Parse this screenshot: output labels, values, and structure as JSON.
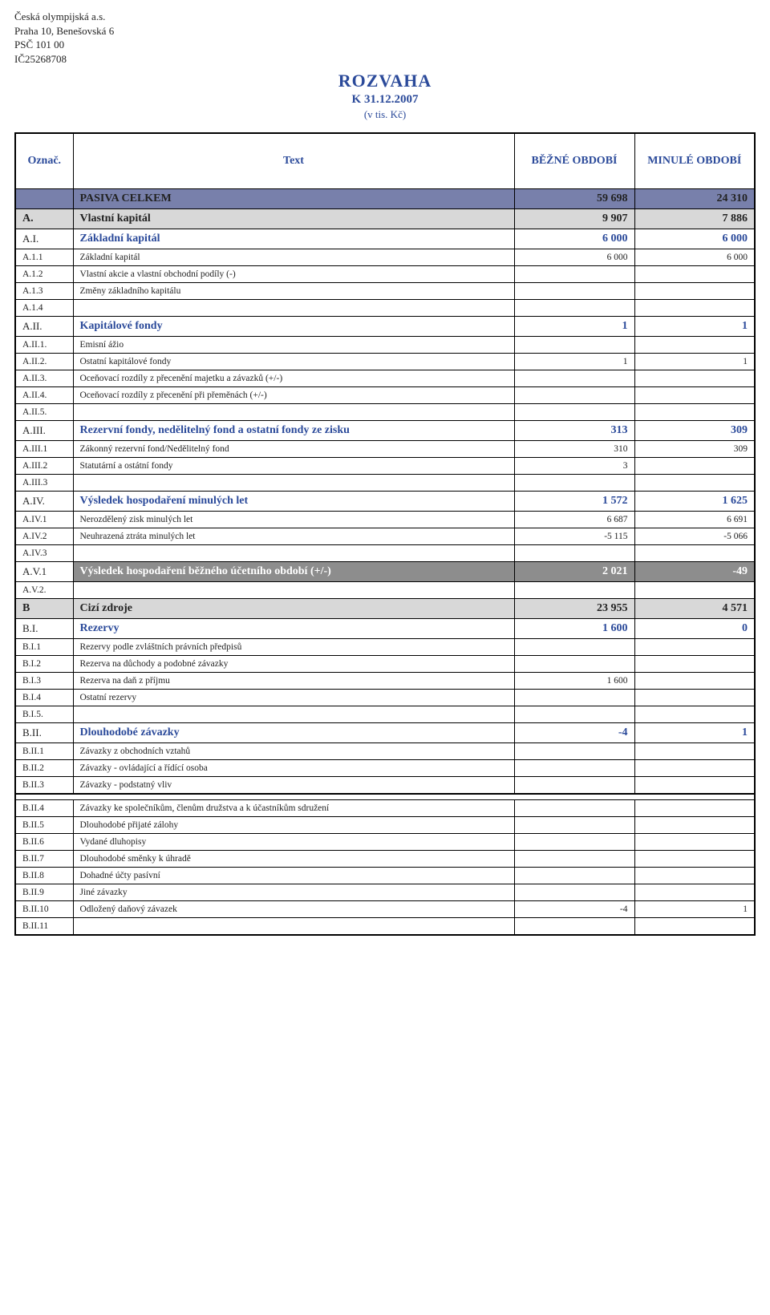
{
  "org": {
    "name": "Česká olympijská a.s.",
    "addr": "Praha 10, Benešovská 6",
    "psc": "PSČ 101 00",
    "ic": "IČ25268708"
  },
  "doc": {
    "title": "ROZVAHA",
    "date": "K 31.12.2007",
    "unit": "(v tis. Kč)"
  },
  "columns": {
    "code": "Označ.",
    "text": "Text",
    "cur": "BĚŽNÉ OBDOBÍ",
    "prev": "MINULÉ OBDOBÍ"
  },
  "rows": [
    {
      "style": "total",
      "code": "",
      "text": "PASIVA CELKEM",
      "cur": "59 698",
      "prev": "24 310"
    },
    {
      "style": "section",
      "code": "A.",
      "text": "Vlastní kapitál",
      "cur": "9 907",
      "prev": "7 886"
    },
    {
      "style": "subhead",
      "code": "A.I.",
      "text": "Základní kapitál",
      "cur": "6 000",
      "prev": "6 000"
    },
    {
      "style": "plain",
      "code": "A.1.1",
      "text": "Základní kapitál",
      "cur": "6 000",
      "prev": "6 000"
    },
    {
      "style": "plain",
      "code": "A.1.2",
      "text": "Vlastní akcie a vlastní obchodní podíly (-)",
      "cur": "",
      "prev": ""
    },
    {
      "style": "plain",
      "code": "A.1.3",
      "text": "Změny základního kapitálu",
      "cur": "",
      "prev": ""
    },
    {
      "style": "plain",
      "code": "A.1.4",
      "text": "",
      "cur": "",
      "prev": ""
    },
    {
      "style": "subhead",
      "code": "A.II.",
      "text": "Kapitálové fondy",
      "cur": "1",
      "prev": "1"
    },
    {
      "style": "plain",
      "code": "A.II.1.",
      "text": "Emisní ážio",
      "cur": "",
      "prev": ""
    },
    {
      "style": "plain",
      "code": "A.II.2.",
      "text": "Ostatní kapitálové fondy",
      "cur": "1",
      "prev": "1"
    },
    {
      "style": "plain",
      "code": "A.II.3.",
      "text": "Oceňovací rozdíly z přecenění majetku a závazků (+/-)",
      "cur": "",
      "prev": ""
    },
    {
      "style": "plain",
      "code": "A.II.4.",
      "text": "Oceňovací rozdíly z přecenění při přeměnách (+/-)",
      "cur": "",
      "prev": ""
    },
    {
      "style": "plain",
      "code": "A.II.5.",
      "text": "",
      "cur": "",
      "prev": ""
    },
    {
      "style": "subhead",
      "code": "A.III.",
      "text": "Rezervní fondy, nedělitelný fond a ostatní fondy ze zisku",
      "cur": "313",
      "prev": "309"
    },
    {
      "style": "plain",
      "code": "A.III.1",
      "text": "Zákonný rezervní fond/Nedělitelný fond",
      "cur": "310",
      "prev": "309"
    },
    {
      "style": "plain",
      "code": "A.III.2",
      "text": "Statutární a ostátní fondy",
      "cur": "3",
      "prev": ""
    },
    {
      "style": "plain",
      "code": "A.III.3",
      "text": "",
      "cur": "",
      "prev": ""
    },
    {
      "style": "subhead",
      "code": "A.IV.",
      "text": "Výsledek hospodaření minulých let",
      "cur": "1 572",
      "prev": "1 625"
    },
    {
      "style": "plain",
      "code": "A.IV.1",
      "text": "Nerozdělený zisk minulých let",
      "cur": "6 687",
      "prev": "6 691"
    },
    {
      "style": "plain",
      "code": "A.IV.2",
      "text": "Neuhrazená ztráta minulých let",
      "cur": "-5 115",
      "prev": "-5 066"
    },
    {
      "style": "plain",
      "code": "A.IV.3",
      "text": "",
      "cur": "",
      "prev": ""
    },
    {
      "style": "subhead-gray",
      "code": "A.V.1",
      "text": "Výsledek hospodaření běžného účetního období (+/-)",
      "cur": "2 021",
      "prev": "-49"
    },
    {
      "style": "plain",
      "code": "A.V.2.",
      "text": "",
      "cur": "",
      "prev": ""
    },
    {
      "style": "section",
      "code": "B",
      "text": "Cizí zdroje",
      "cur": "23 955",
      "prev": "4 571"
    },
    {
      "style": "subhead",
      "code": "B.I.",
      "text": "Rezervy",
      "cur": "1 600",
      "prev": "0"
    },
    {
      "style": "plain",
      "code": "B.I.1",
      "text": "Rezervy podle zvláštních právních předpisů",
      "cur": "",
      "prev": ""
    },
    {
      "style": "plain",
      "code": "B.I.2",
      "text": "Rezerva na důchody a podobné závazky",
      "cur": "",
      "prev": ""
    },
    {
      "style": "plain",
      "code": "B.I.3",
      "text": "Rezerva na daň z příjmu",
      "cur": "1 600",
      "prev": ""
    },
    {
      "style": "plain",
      "code": "B.I.4",
      "text": "Ostatní rezervy",
      "cur": "",
      "prev": ""
    },
    {
      "style": "plain",
      "code": "B.I.5.",
      "text": "",
      "cur": "",
      "prev": ""
    },
    {
      "style": "subhead",
      "code": "B.II.",
      "text": "Dlouhodobé závazky",
      "cur": "-4",
      "prev": "1"
    },
    {
      "style": "plain",
      "code": "B.II.1",
      "text": "Závazky z obchodních vztahů",
      "cur": "",
      "prev": ""
    },
    {
      "style": "plain",
      "code": "B.II.2",
      "text": "Závazky  - ovládající a řídící osoba",
      "cur": "",
      "prev": ""
    },
    {
      "style": "plain",
      "code": "B.II.3",
      "text": "Závazky - podstatný vliv",
      "cur": "",
      "prev": ""
    },
    {
      "style": "spacer"
    },
    {
      "style": "plain",
      "code": "B.II.4",
      "text": "Závazky ke společníkům, členům družstva a k účastníkům sdružení",
      "cur": "",
      "prev": ""
    },
    {
      "style": "plain",
      "code": "B.II.5",
      "text": "Dlouhodobé přijaté zálohy",
      "cur": "",
      "prev": ""
    },
    {
      "style": "plain",
      "code": "B.II.6",
      "text": "Vydané dluhopisy",
      "cur": "",
      "prev": ""
    },
    {
      "style": "plain",
      "code": "B.II.7",
      "text": "Dlouhodobé směnky k úhradě",
      "cur": "",
      "prev": ""
    },
    {
      "style": "plain",
      "code": "B.II.8",
      "text": "Dohadné účty pasívní",
      "cur": "",
      "prev": ""
    },
    {
      "style": "plain",
      "code": "B.II.9",
      "text": "Jiné závazky",
      "cur": "",
      "prev": ""
    },
    {
      "style": "plain",
      "code": "B.II.10",
      "text": "Odložený daňový závazek",
      "cur": "-4",
      "prev": "1"
    },
    {
      "style": "plain",
      "code": "B.II.11",
      "text": "",
      "cur": "",
      "prev": ""
    }
  ]
}
